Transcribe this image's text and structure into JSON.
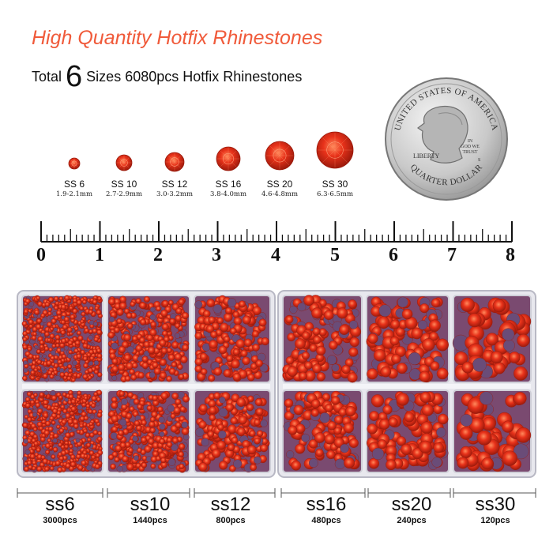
{
  "header": {
    "title": "High Quantity Hotfix Rhinestones",
    "subtitle_pre": "Total",
    "subtitle_number": "6",
    "subtitle_post": "Sizes 6080pcs Hotfix Rhinestones"
  },
  "coin": {
    "top_text": "UNITED STATES OF AMERICA",
    "bottom_text": "QUARTER DOLLAR",
    "motto": "IN GOD WE TRUST",
    "motto_lines": [
      "IN",
      "GOD WE",
      "TRUST"
    ],
    "liberty": "LIBERTY",
    "mint_mark": "S"
  },
  "sizes": [
    {
      "label": "SS 6",
      "mm": "1.9-2.1mm"
    },
    {
      "label": "SS 10",
      "mm": "2.7-2.9mm"
    },
    {
      "label": "SS 12",
      "mm": "3.0-3.2mm"
    },
    {
      "label": "SS 16",
      "mm": "3.8-4.0mm"
    },
    {
      "label": "SS 20",
      "mm": "4.6-4.8mm"
    },
    {
      "label": "SS 30",
      "mm": "6.3-6.5mm"
    }
  ],
  "ruler": {
    "numbers": [
      "0",
      "1",
      "2",
      "3",
      "4",
      "5",
      "6",
      "7",
      "8"
    ]
  },
  "boxes": [
    {
      "size": "ss6",
      "count": "3000pcs"
    },
    {
      "size": "ss10",
      "count": "1440pcs"
    },
    {
      "size": "ss12",
      "count": "800pcs"
    },
    {
      "size": "ss16",
      "count": "480pcs"
    },
    {
      "size": "ss20",
      "count": "240pcs"
    },
    {
      "size": "ss30",
      "count": "120pcs"
    }
  ],
  "colors": {
    "title": "#f05a3a",
    "stone": "#e8321a",
    "stone_dark": "#9c1a0c",
    "stone_shadow": "#6a4c78"
  }
}
